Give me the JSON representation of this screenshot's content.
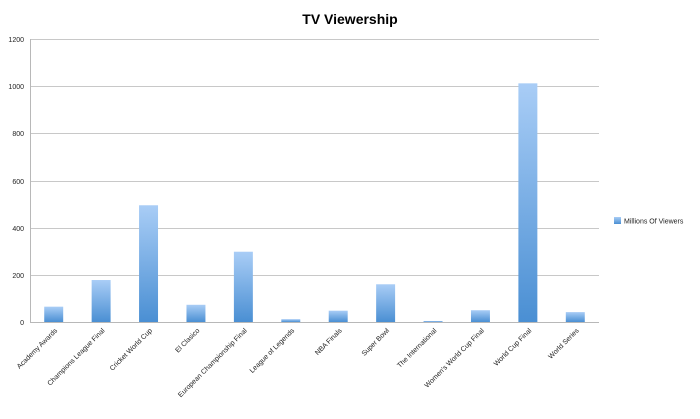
{
  "chart_data": {
    "type": "bar",
    "title": "TV Viewership",
    "xlabel": "",
    "ylabel": "",
    "ylim": [
      0,
      1200
    ],
    "yticks": [
      0,
      200,
      400,
      600,
      800,
      1000,
      1200
    ],
    "grid": true,
    "legend_position": "right",
    "categories": [
      "Academy Awards",
      "Champions League Final",
      "Cricket World Cup",
      "El Clasico",
      "European Championship Final",
      "League of Legends",
      "NBA Finals",
      "Super Bowl",
      "The International",
      "Women's World Cup Final",
      "World Cup Final",
      "World Series"
    ],
    "series": [
      {
        "name": "Millions Of Viewers",
        "color_top": "#a9cdf6",
        "color_bottom": "#4a8fd3",
        "values": [
          65,
          178,
          495,
          73,
          298,
          12,
          48,
          160,
          4,
          50,
          1012,
          42
        ]
      }
    ]
  }
}
